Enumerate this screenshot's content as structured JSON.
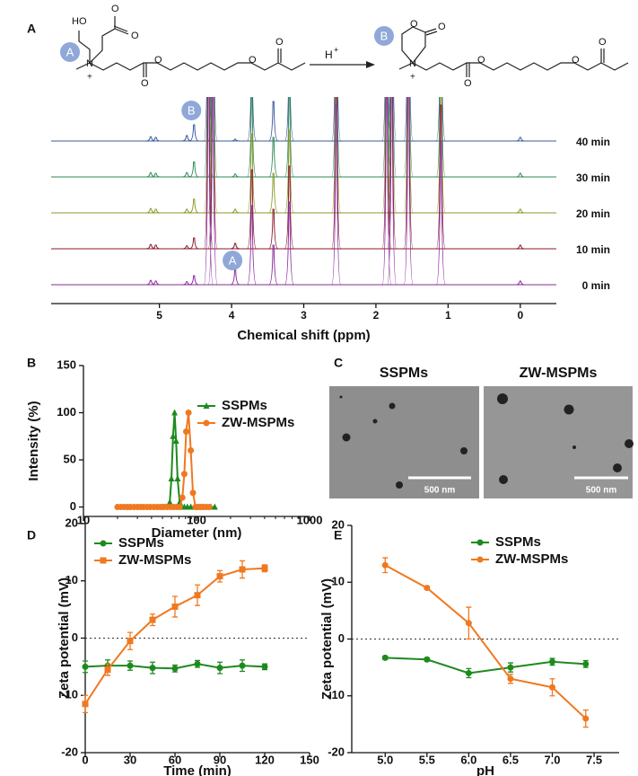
{
  "scheme": {
    "left": [
      "HO",
      "O",
      "O",
      "N",
      "+",
      "O",
      "O",
      "O",
      "O"
    ],
    "right": [
      "O",
      "O",
      "N",
      "+",
      "O",
      "O",
      "O",
      "O"
    ],
    "reagent": "H",
    "reagent_charge": "+",
    "markers": [
      "A",
      "B"
    ]
  },
  "tem": {
    "panel": "C",
    "images": [
      {
        "title": "SSPMs",
        "scale_bar": "500 nm"
      },
      {
        "title": "ZW-MSPMs",
        "scale_bar": "500 nm"
      }
    ]
  },
  "chart_data": [
    {
      "type": "spectrum",
      "panel": "A",
      "x_label": "Chemical shift (ppm)",
      "xlim": [
        6.5,
        -0.5
      ],
      "xticks": [
        5,
        4,
        3,
        2,
        1,
        0
      ],
      "x": [
        5.12,
        5.05,
        4.62,
        4.52,
        4.32,
        4.26,
        3.95,
        3.72,
        3.42,
        3.2,
        2.55,
        1.85,
        1.78,
        1.55,
        1.1,
        0.0
      ],
      "annotations": [
        {
          "text": "B",
          "x": 4.52
        },
        {
          "text": "A",
          "x": 3.95
        }
      ],
      "series": [
        {
          "name": "40 min",
          "color": "#3b5b9b",
          "values": [
            12,
            10,
            15,
            45,
            600,
            600,
            5,
            220,
            110,
            230,
            500,
            600,
            600,
            600,
            400,
            10
          ]
        },
        {
          "name": "30 min",
          "color": "#2e8b57",
          "values": [
            12,
            10,
            12,
            42,
            600,
            600,
            8,
            220,
            110,
            230,
            500,
            600,
            600,
            600,
            400,
            10
          ]
        },
        {
          "name": "20 min",
          "color": "#8a9a2a",
          "values": [
            12,
            10,
            10,
            38,
            600,
            600,
            10,
            220,
            110,
            230,
            500,
            600,
            600,
            600,
            400,
            10
          ]
        },
        {
          "name": "10 min",
          "color": "#8b1a2a",
          "values": [
            12,
            10,
            8,
            30,
            600,
            600,
            15,
            220,
            110,
            230,
            500,
            600,
            600,
            600,
            400,
            10
          ]
        },
        {
          "name": "0 min",
          "color": "#8a2a9a",
          "values": [
            12,
            10,
            8,
            25,
            600,
            600,
            40,
            220,
            110,
            230,
            500,
            600,
            600,
            600,
            400,
            10
          ]
        }
      ]
    },
    {
      "type": "line",
      "panel": "B",
      "x_label": "Diameter (nm)",
      "y_label": "Intensity (%)",
      "xlim": [
        10,
        1000
      ],
      "xticks": [
        10,
        100,
        1000
      ],
      "log_x": true,
      "ylim": [
        -10,
        150
      ],
      "yticks": [
        0,
        50,
        100,
        150
      ],
      "legend": "upper right",
      "series": [
        {
          "name": "SSPMs",
          "color": "#1e8a1e",
          "marker": "triangle",
          "x": [
            50,
            53,
            56,
            58,
            60,
            62,
            64,
            66,
            68,
            71,
            74,
            78,
            83,
            89,
            96,
            104,
            113,
            123,
            134,
            145
          ],
          "values": [
            0,
            0,
            0,
            5,
            30,
            75,
            100,
            70,
            30,
            5,
            0,
            0,
            0,
            0,
            0,
            0,
            0,
            0,
            0,
            0
          ]
        },
        {
          "name": "ZW-MSPMs",
          "color": "#f07820",
          "marker": "circle",
          "x": [
            20,
            21.5,
            23,
            24.5,
            26,
            28,
            30,
            32,
            34,
            36.5,
            39,
            42,
            45,
            48,
            51,
            55,
            59,
            63,
            67,
            71,
            75,
            78,
            81,
            85,
            89,
            93,
            98,
            103,
            109,
            115,
            122,
            130
          ],
          "values": [
            0,
            0,
            0,
            0,
            0,
            0,
            0,
            0,
            0,
            0,
            0,
            0,
            0,
            0,
            0,
            0,
            0,
            0,
            0,
            0,
            10,
            35,
            80,
            100,
            60,
            15,
            0,
            0,
            0,
            0,
            0,
            0
          ]
        }
      ]
    },
    {
      "type": "line",
      "panel": "D",
      "x_label": "Time (min)",
      "y_label": "Zeta potential (mV)",
      "xlim": [
        0,
        150
      ],
      "xticks": [
        0,
        30,
        60,
        90,
        120,
        150
      ],
      "ylim": [
        -20,
        20
      ],
      "yticks": [
        -20,
        -10,
        0,
        10,
        20
      ],
      "hline": 0,
      "legend": "upper left",
      "series": [
        {
          "name": "SSPMs",
          "color": "#1e8a1e",
          "marker": "circle",
          "x": [
            0,
            15,
            30,
            45,
            60,
            75,
            90,
            105,
            120
          ],
          "values": [
            -5,
            -4.8,
            -4.8,
            -5.2,
            -5.3,
            -4.5,
            -5.2,
            -4.8,
            -5
          ],
          "errors": [
            1,
            1,
            0.8,
            1,
            0.6,
            0.6,
            1,
            1,
            0.5
          ]
        },
        {
          "name": "ZW-MSPMs",
          "color": "#f07820",
          "marker": "square",
          "x": [
            0,
            15,
            30,
            45,
            60,
            75,
            90,
            105,
            120
          ],
          "values": [
            -11.5,
            -5.5,
            -0.5,
            3.2,
            5.5,
            7.5,
            10.8,
            12,
            12.2
          ],
          "errors": [
            1.5,
            1,
            1.5,
            1,
            1.8,
            1.8,
            1,
            1.5,
            0.6
          ]
        }
      ]
    },
    {
      "type": "line",
      "panel": "E",
      "x_label": "pH",
      "y_label": "Zeta potential (mV)",
      "xlim": [
        4.6,
        7.8
      ],
      "xticks": [
        {
          "value": 5,
          "label": "5.0"
        },
        5.5,
        {
          "value": 6,
          "label": "6.0"
        },
        6.5,
        {
          "value": 7,
          "label": "7.0"
        },
        7.5
      ],
      "ylim": [
        -20,
        20
      ],
      "yticks": [
        -20,
        -10,
        0,
        10,
        20
      ],
      "hline": 0,
      "legend": "upper right",
      "series": [
        {
          "name": "SSPMs",
          "color": "#1e8a1e",
          "marker": "circle",
          "x": [
            5.0,
            5.5,
            6.0,
            6.5,
            7.0,
            7.4
          ],
          "values": [
            -3.3,
            -3.6,
            -6,
            -5,
            -4,
            -4.4
          ],
          "errors": [
            0.3,
            0.3,
            0.8,
            0.8,
            0.6,
            0.6
          ]
        },
        {
          "name": "ZW-MSPMs",
          "color": "#f07820",
          "marker": "circle",
          "x": [
            5.0,
            5.5,
            6.0,
            6.5,
            7.0,
            7.4
          ],
          "values": [
            13,
            9,
            2.8,
            -7,
            -8.5,
            -14
          ],
          "errors": [
            1.3,
            0.3,
            2.8,
            0.8,
            1.5,
            1.5
          ]
        }
      ]
    }
  ]
}
